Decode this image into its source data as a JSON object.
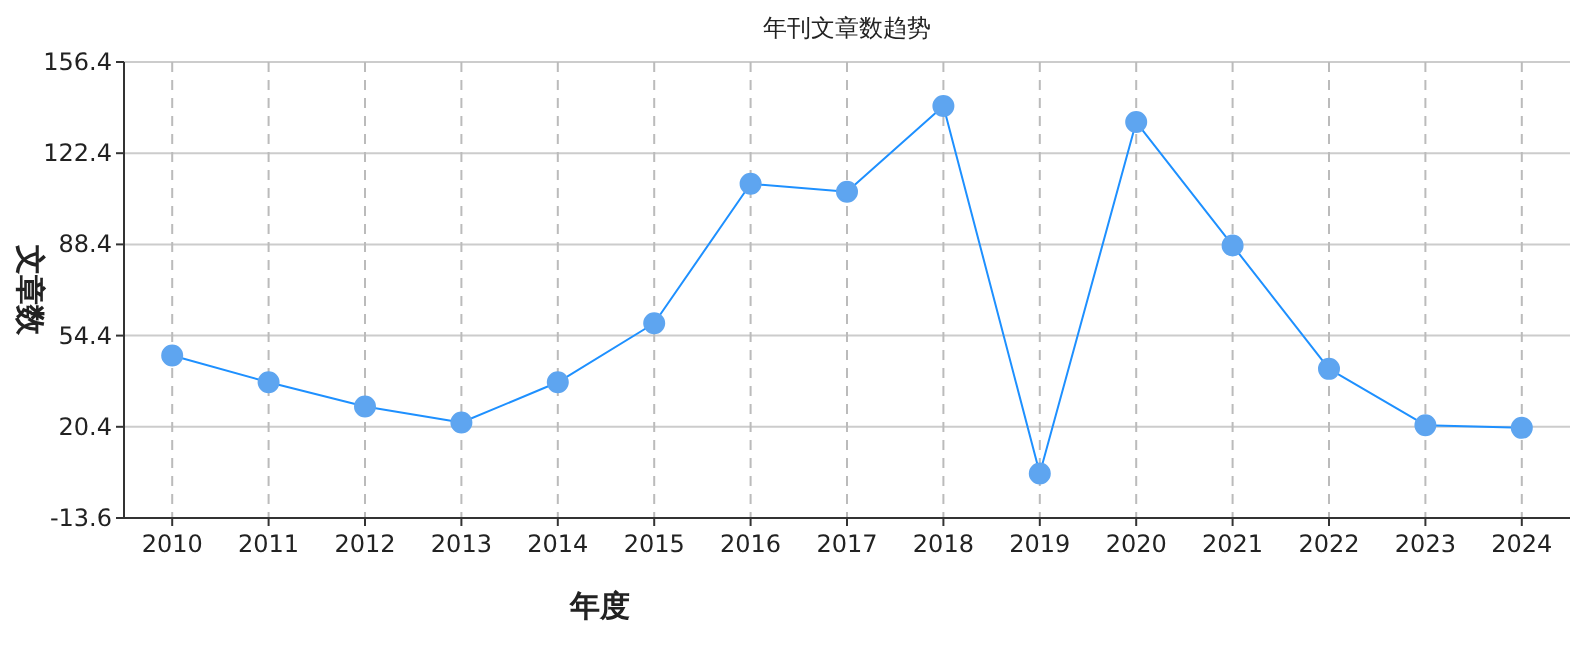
{
  "chart_data": {
    "type": "line",
    "title": "年刊文章数趋势",
    "xlabel": "年度",
    "ylabel": "文章数",
    "categories": [
      "2010",
      "2011",
      "2012",
      "2013",
      "2014",
      "2015",
      "2016",
      "2017",
      "2018",
      "2019",
      "2020",
      "2021",
      "2022",
      "2023",
      "2024"
    ],
    "series": [
      {
        "color": "#1e90ff",
        "values": [
          47,
          37,
          28,
          22,
          37,
          59,
          111,
          108,
          140,
          3,
          134,
          88,
          42,
          21,
          20
        ]
      }
    ],
    "ylim": [
      -13.6,
      156.4
    ],
    "yticks": [
      -13.6,
      20.4,
      54.4,
      88.4,
      122.4,
      156.4
    ],
    "grid": true,
    "marker": "circle",
    "line_style": "solid"
  }
}
